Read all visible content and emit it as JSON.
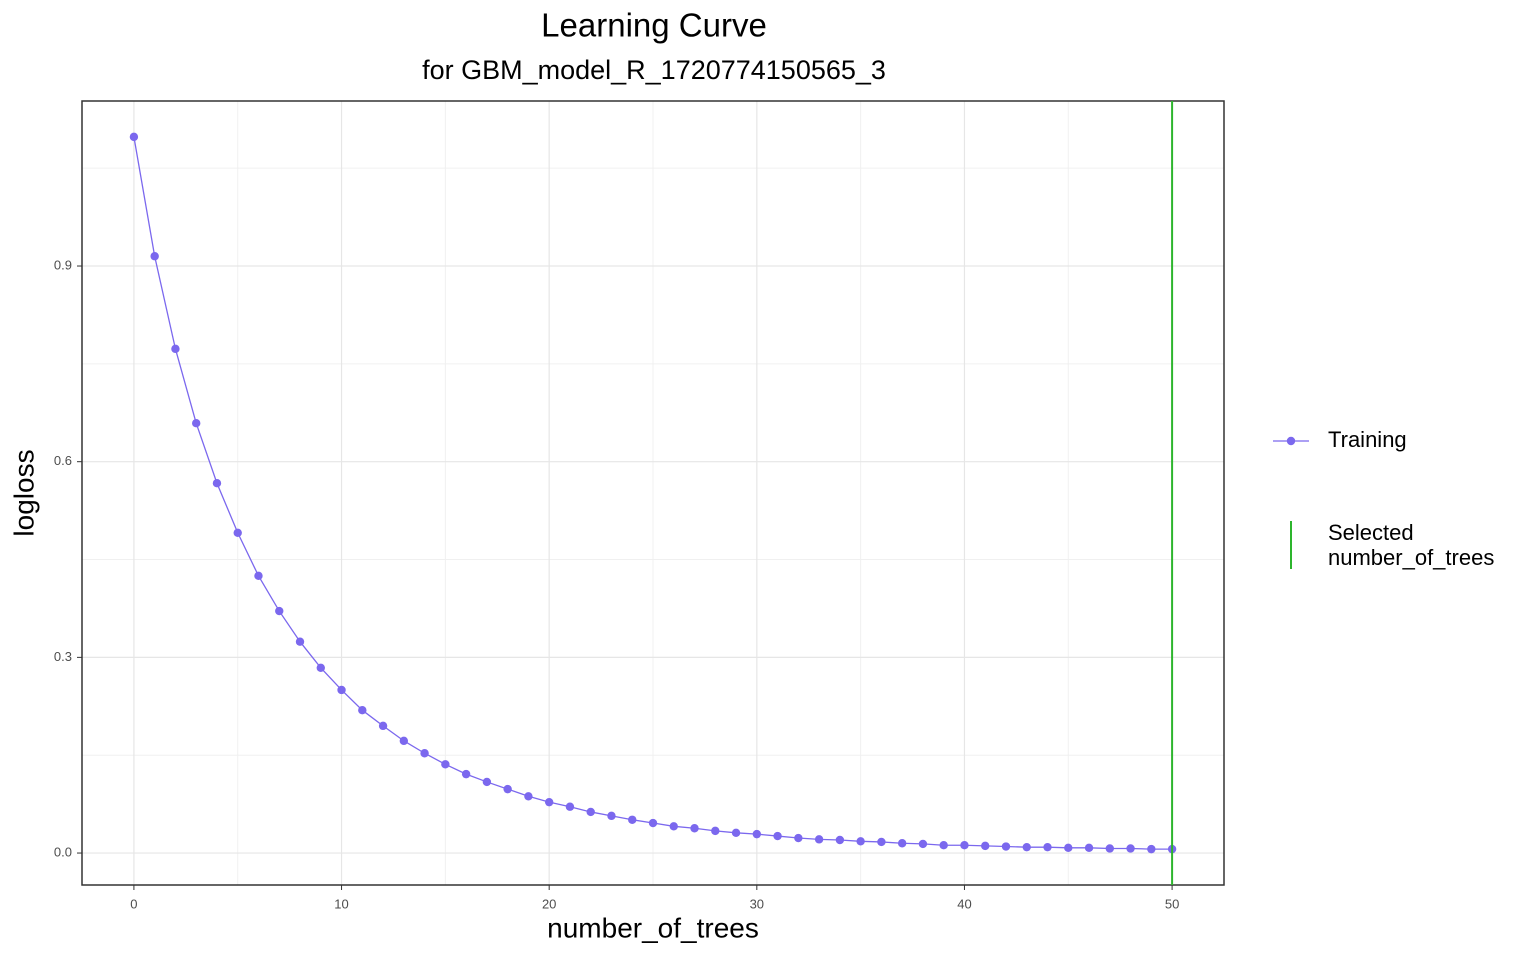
{
  "chart_data": {
    "type": "line",
    "title": "Learning Curve",
    "subtitle": "for GBM_model_R_1720774150565_3",
    "x_label": "number_of_trees",
    "y_label": "logloss",
    "x": [
      0,
      1,
      2,
      3,
      4,
      5,
      6,
      7,
      8,
      9,
      10,
      11,
      12,
      13,
      14,
      15,
      16,
      17,
      18,
      19,
      20,
      21,
      22,
      23,
      24,
      25,
      26,
      27,
      28,
      29,
      30,
      31,
      32,
      33,
      34,
      35,
      36,
      37,
      38,
      39,
      40,
      41,
      42,
      43,
      44,
      45,
      46,
      47,
      48,
      49,
      50
    ],
    "series": [
      {
        "name": "Training",
        "color": "#7b68ee",
        "values": [
          1.098,
          0.915,
          0.773,
          0.659,
          0.567,
          0.491,
          0.425,
          0.371,
          0.324,
          0.284,
          0.25,
          0.219,
          0.195,
          0.172,
          0.153,
          0.136,
          0.121,
          0.109,
          0.098,
          0.087,
          0.078,
          0.071,
          0.063,
          0.057,
          0.051,
          0.046,
          0.041,
          0.038,
          0.034,
          0.031,
          0.029,
          0.026,
          0.023,
          0.021,
          0.02,
          0.018,
          0.017,
          0.015,
          0.014,
          0.012,
          0.012,
          0.011,
          0.01,
          0.009,
          0.009,
          0.008,
          0.008,
          0.007,
          0.007,
          0.006,
          0.006
        ]
      }
    ],
    "vline": {
      "x": 50,
      "name": "Selected\nnumber_of_trees",
      "color": "#2db52d"
    },
    "xlim": [
      -2.5,
      52.5
    ],
    "ylim": [
      -0.049,
      1.153
    ],
    "xticks": [
      0,
      10,
      20,
      30,
      40,
      50
    ],
    "yticks": [
      {
        "value": 0,
        "label": "0.0"
      },
      0.3,
      0.6,
      0.9
    ],
    "minor_xticks": [
      5,
      15,
      25,
      35,
      45
    ],
    "minor_yticks": [
      0.15,
      0.45,
      0.75,
      1.05
    ],
    "grid": true,
    "legend": "right"
  }
}
